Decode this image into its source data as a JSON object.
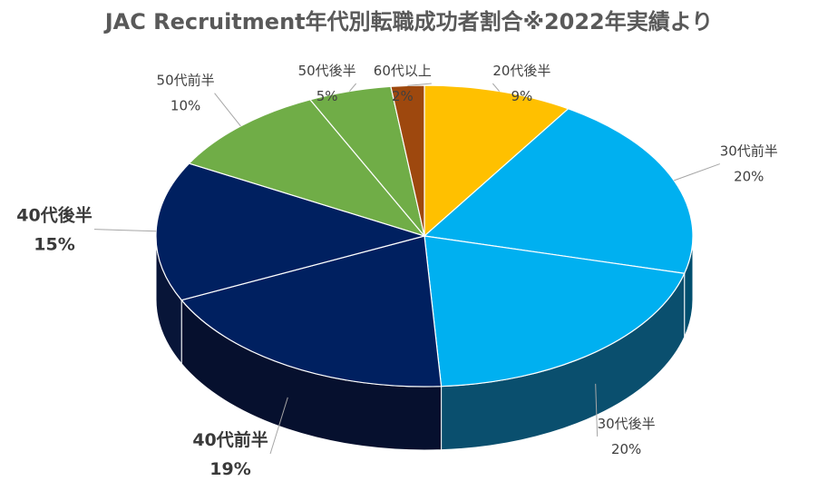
{
  "chart_data": {
    "type": "pie",
    "title": "JAC Recruitment年代別転職成功者割合※2022年実績より",
    "slices": [
      {
        "label": "20代後半",
        "value": 9,
        "percent_label": "9%",
        "color": "#FFC000",
        "side": "#8A6800",
        "emphasis": false
      },
      {
        "label": "30代前半",
        "value": 20,
        "percent_label": "20%",
        "color": "#00B0F0",
        "side": "#004E6E",
        "emphasis": false
      },
      {
        "label": "30代後半",
        "value": 20,
        "percent_label": "20%",
        "color": "#00B0F0",
        "side": "#0A4F6E",
        "emphasis": false
      },
      {
        "label": "40代前半",
        "value": 19,
        "percent_label": "19%",
        "color": "#002060",
        "side": "#06102E",
        "emphasis": true
      },
      {
        "label": "40代後半",
        "value": 15,
        "percent_label": "15%",
        "color": "#002060",
        "side": "#081538",
        "emphasis": true
      },
      {
        "label": "50代前半",
        "value": 10,
        "percent_label": "10%",
        "color": "#70AD47",
        "side": "#3C5E26",
        "emphasis": false
      },
      {
        "label": "50代後半",
        "value": 5,
        "percent_label": "5%",
        "color": "#70AD47",
        "side": "#3C5E26",
        "emphasis": false
      },
      {
        "label": "60代以上",
        "value": 2,
        "percent_label": "2%",
        "color": "#9E480E",
        "side": "#5A2808",
        "emphasis": false
      }
    ],
    "legend": "none",
    "start_angle": "12 o'clock",
    "direction": "clockwise",
    "style": "3d-pie"
  }
}
